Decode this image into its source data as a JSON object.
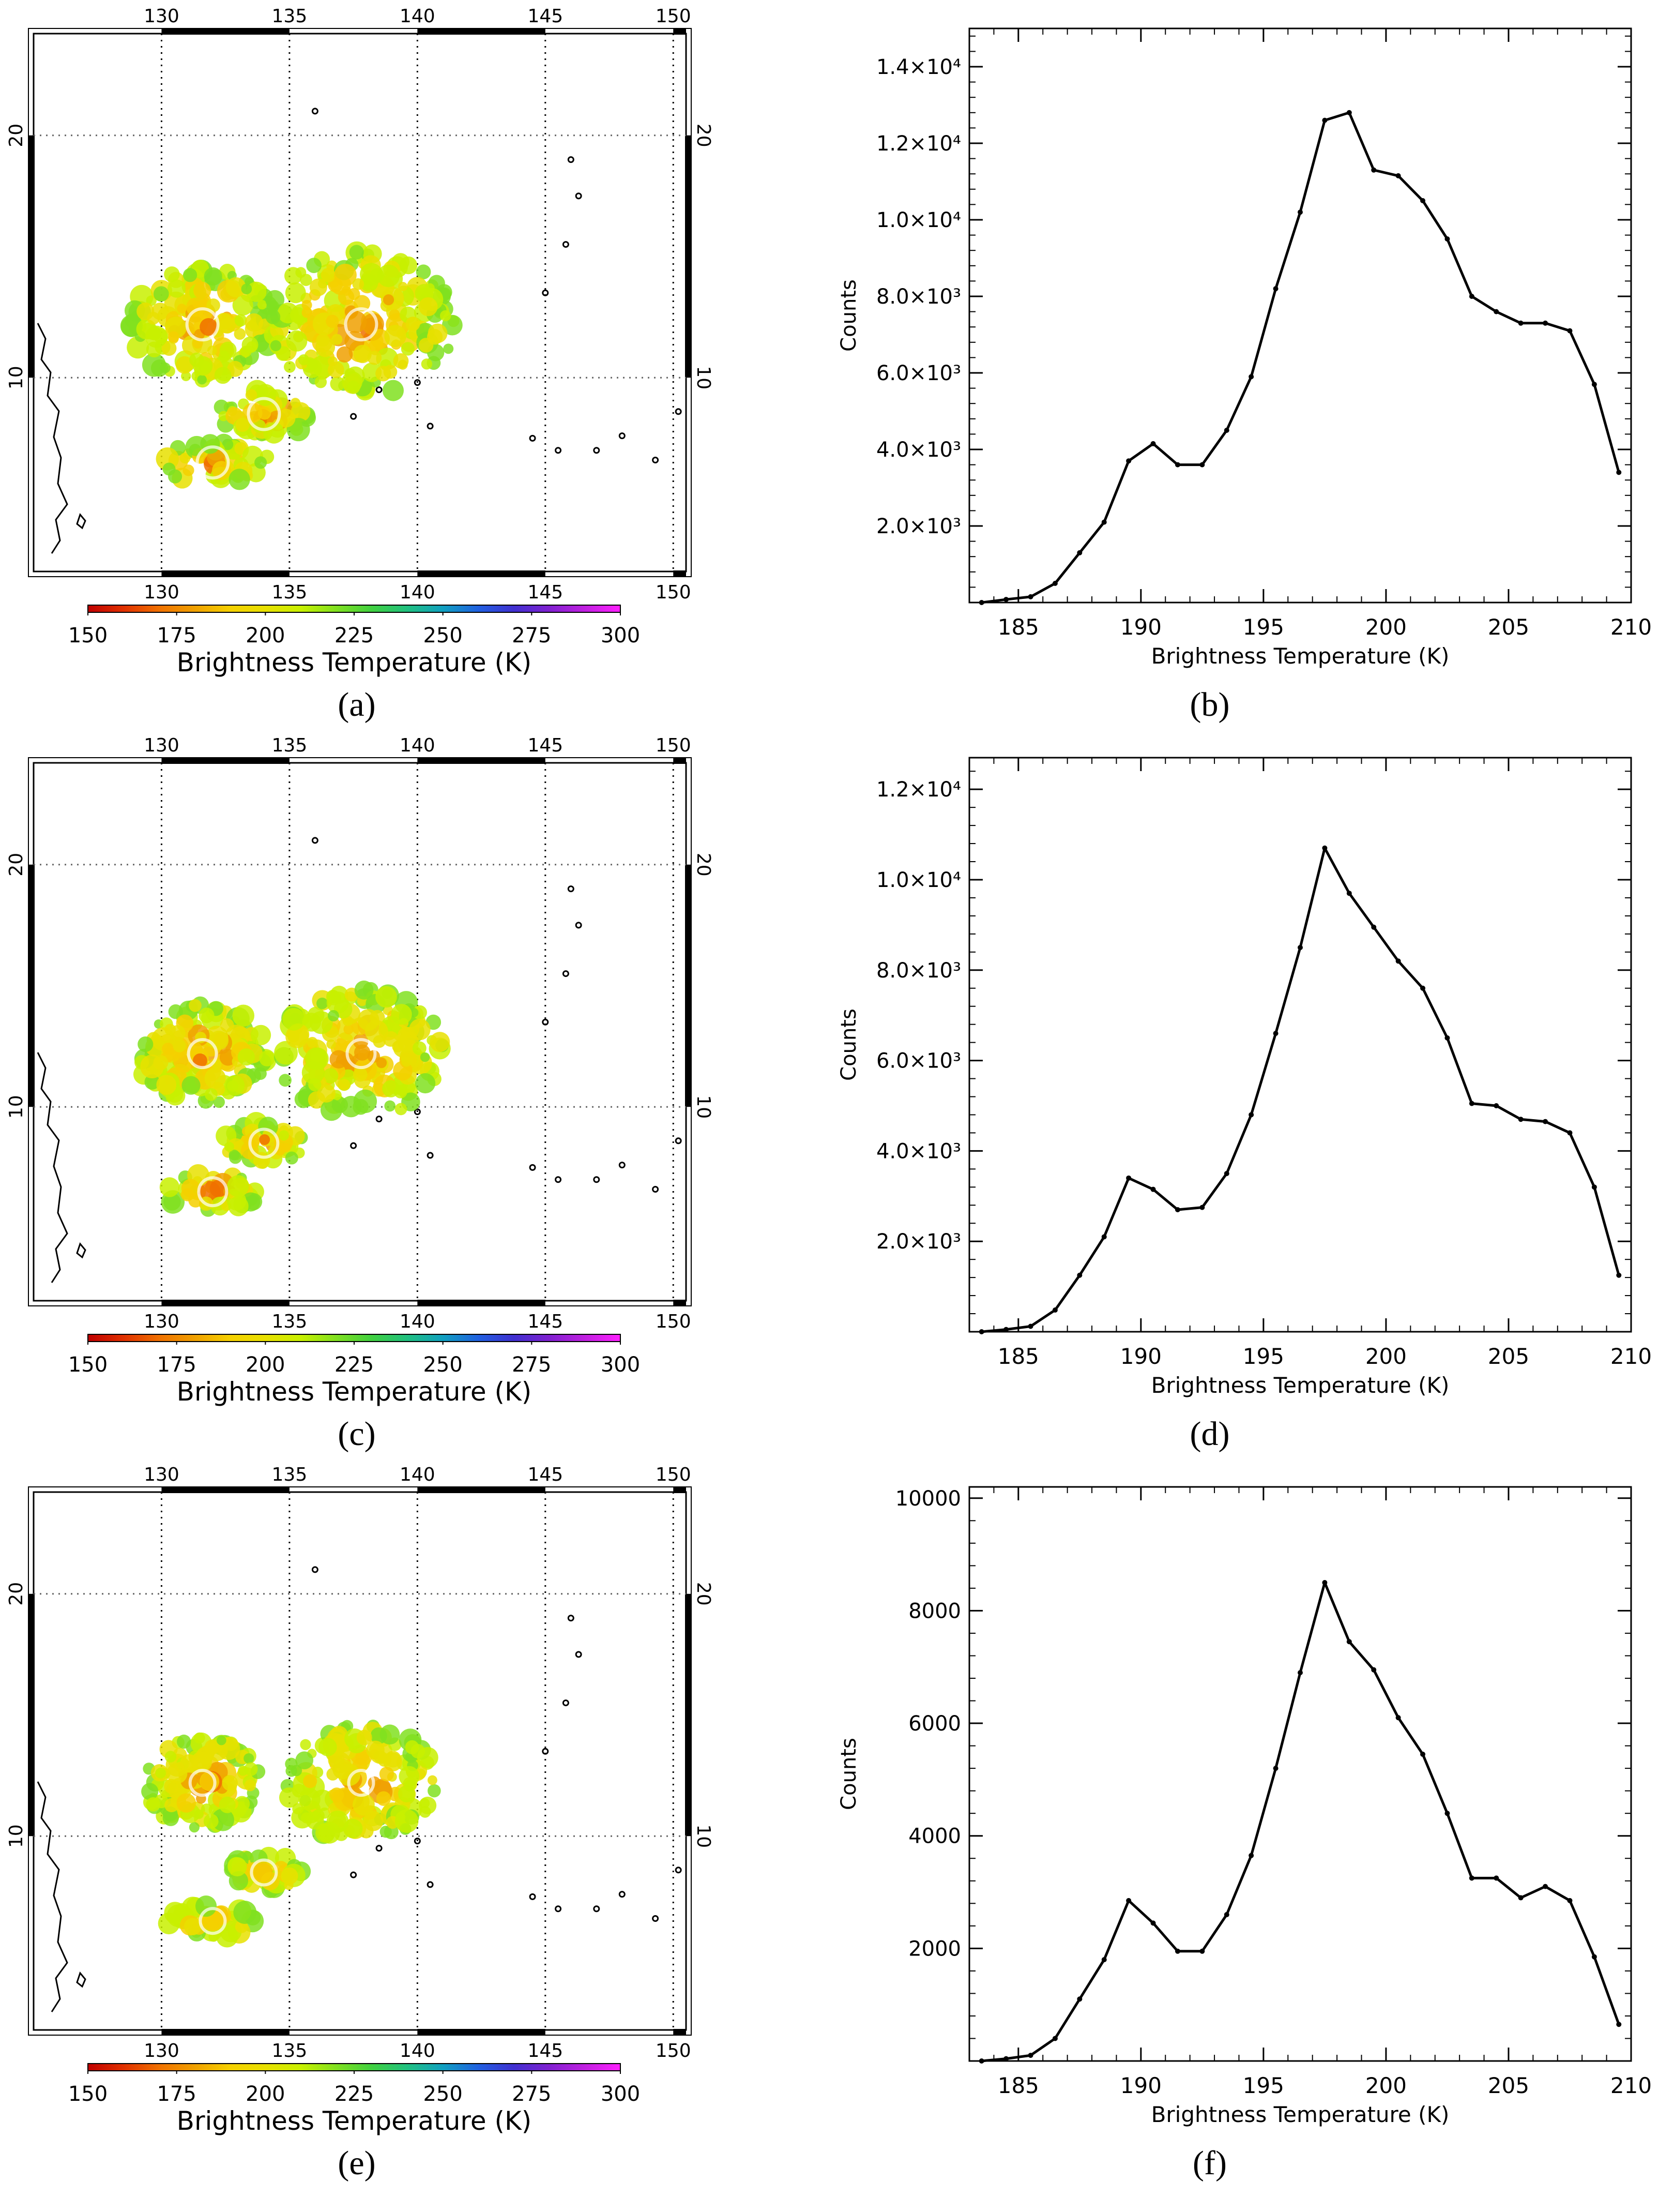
{
  "figure": {
    "captions": [
      "(a)",
      "(b)",
      "(c)",
      "(d)",
      "(e)",
      "(f)"
    ]
  },
  "map_panels": [
    {
      "id": "a",
      "lon_ticks": [
        "130",
        "135",
        "140",
        "145",
        "150"
      ],
      "lat_ticks": [
        "20",
        "10"
      ],
      "colorbar_ticks": [
        "150",
        "175",
        "200",
        "225",
        "250",
        "275",
        "300"
      ],
      "colorbar_label": "Brightness Temperature (K)",
      "cloud_scale": 1.0
    },
    {
      "id": "c",
      "lon_ticks": [
        "130",
        "135",
        "140",
        "145",
        "150"
      ],
      "lat_ticks": [
        "20",
        "10"
      ],
      "colorbar_ticks": [
        "150",
        "175",
        "200",
        "225",
        "250",
        "275",
        "300"
      ],
      "colorbar_label": "Brightness Temperature (K)",
      "cloud_scale": 0.9
    },
    {
      "id": "e",
      "lon_ticks": [
        "130",
        "135",
        "140",
        "145",
        "150"
      ],
      "lat_ticks": [
        "20",
        "10"
      ],
      "colorbar_ticks": [
        "150",
        "175",
        "200",
        "225",
        "250",
        "275",
        "300"
      ],
      "colorbar_label": "Brightness Temperature (K)",
      "cloud_scale": 0.8
    }
  ],
  "chart_data": [
    {
      "id": "b",
      "type": "line",
      "xlabel": "Brightness Temperature (K)",
      "ylabel": "Counts",
      "xlim": [
        183,
        210
      ],
      "ylim": [
        0,
        15000
      ],
      "xticks": [
        185,
        190,
        195,
        200,
        205,
        210
      ],
      "yticks": [
        2000,
        4000,
        6000,
        8000,
        10000,
        12000,
        14000
      ],
      "ytick_labels": [
        "2.0×10³",
        "4.0×10³",
        "6.0×10³",
        "8.0×10³",
        "1.0×10⁴",
        "1.2×10⁴",
        "1.4×10⁴"
      ],
      "x": [
        183.5,
        184.5,
        185.5,
        186.5,
        187.5,
        188.5,
        189.5,
        190.5,
        191.5,
        192.5,
        193.5,
        194.5,
        195.5,
        196.5,
        197.5,
        198.5,
        199.5,
        200.5,
        201.5,
        202.5,
        203.5,
        204.5,
        205.5,
        206.5,
        207.5,
        208.5,
        209.5
      ],
      "values": [
        0,
        80,
        150,
        500,
        1300,
        2100,
        3700,
        4150,
        3600,
        3600,
        4500,
        5900,
        8200,
        10200,
        12600,
        12800,
        11300,
        11150,
        10500,
        9500,
        8000,
        7600,
        7300,
        7300,
        7100,
        5700,
        3400
      ]
    },
    {
      "id": "d",
      "type": "line",
      "xlabel": "Brightness Temperature (K)",
      "ylabel": "Counts",
      "xlim": [
        183,
        210
      ],
      "ylim": [
        0,
        12700
      ],
      "xticks": [
        185,
        190,
        195,
        200,
        205,
        210
      ],
      "yticks": [
        2000,
        4000,
        6000,
        8000,
        10000,
        12000
      ],
      "ytick_labels": [
        "2.0×10³",
        "4.0×10³",
        "6.0×10³",
        "8.0×10³",
        "1.0×10⁴",
        "1.2×10⁴"
      ],
      "x": [
        183.5,
        184.5,
        185.5,
        186.5,
        187.5,
        188.5,
        189.5,
        190.5,
        191.5,
        192.5,
        193.5,
        194.5,
        195.5,
        196.5,
        197.5,
        198.5,
        199.5,
        200.5,
        201.5,
        202.5,
        203.5,
        204.5,
        205.5,
        206.5,
        207.5,
        208.5,
        209.5
      ],
      "values": [
        0,
        50,
        120,
        480,
        1250,
        2100,
        3400,
        3150,
        2700,
        2750,
        3500,
        4800,
        6600,
        8500,
        10700,
        9700,
        8950,
        8200,
        7600,
        6500,
        5050,
        5000,
        4700,
        4650,
        4400,
        3200,
        1250
      ]
    },
    {
      "id": "f",
      "type": "line",
      "xlabel": "Brightness Temperature (K)",
      "ylabel": "Counts",
      "xlim": [
        183,
        210
      ],
      "ylim": [
        0,
        10200
      ],
      "xticks": [
        185,
        190,
        195,
        200,
        205,
        210
      ],
      "yticks": [
        2000,
        4000,
        6000,
        8000,
        10000
      ],
      "ytick_labels": [
        "2000",
        "4000",
        "6000",
        "8000",
        "10000"
      ],
      "x": [
        183.5,
        184.5,
        185.5,
        186.5,
        187.5,
        188.5,
        189.5,
        190.5,
        191.5,
        192.5,
        193.5,
        194.5,
        195.5,
        196.5,
        197.5,
        198.5,
        199.5,
        200.5,
        201.5,
        202.5,
        203.5,
        204.5,
        205.5,
        206.5,
        207.5,
        208.5,
        209.5
      ],
      "values": [
        0,
        40,
        100,
        400,
        1100,
        1800,
        2850,
        2450,
        1950,
        1950,
        2600,
        3650,
        5200,
        6900,
        8500,
        7450,
        6950,
        6100,
        5450,
        4400,
        3250,
        3250,
        2900,
        3100,
        2850,
        1850,
        650
      ]
    }
  ]
}
